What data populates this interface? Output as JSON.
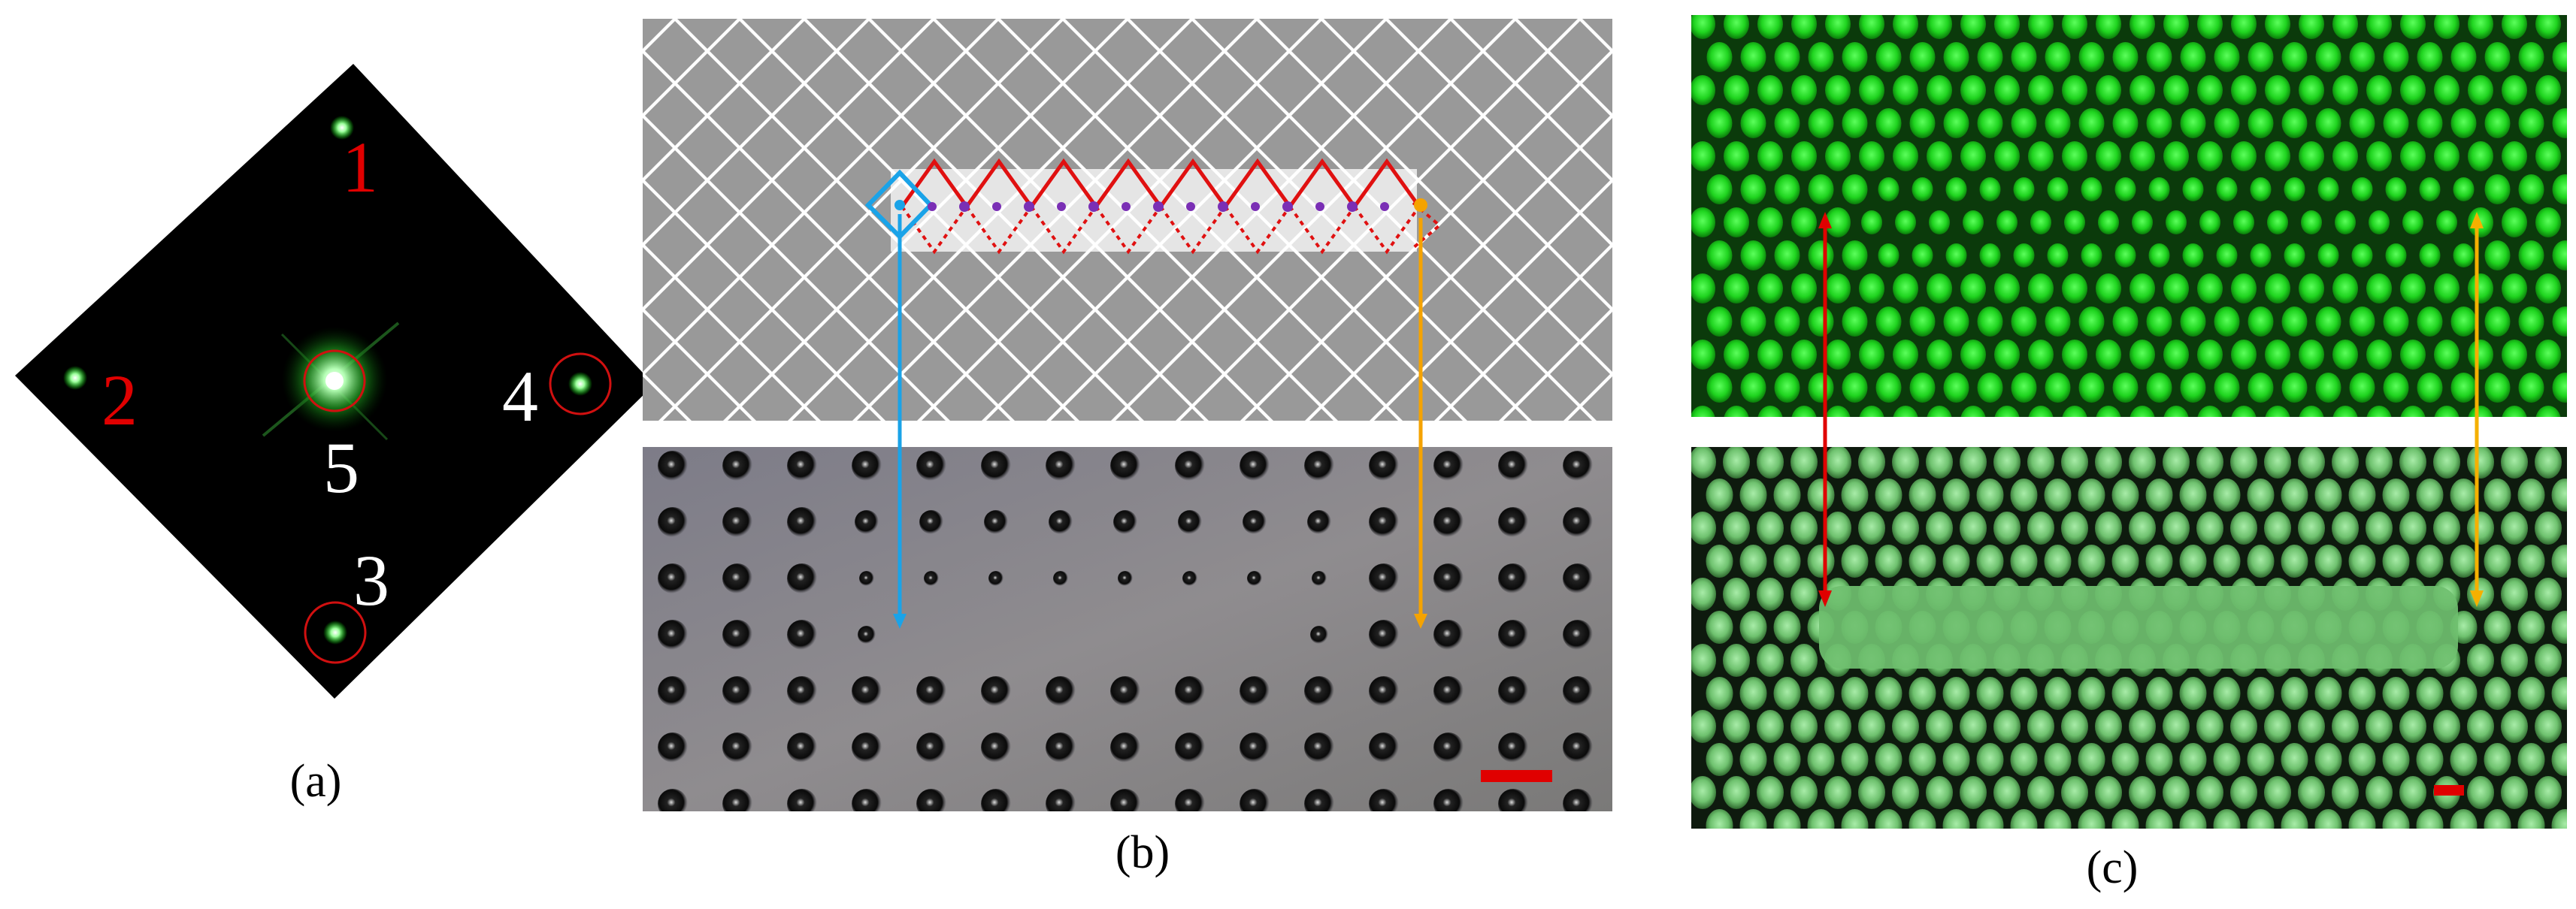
{
  "figure": {
    "panels": [
      {
        "caption": "(a)",
        "spot_labels": [
          {
            "text": "1",
            "color": "#e00000"
          },
          {
            "text": "2",
            "color": "#e00000"
          },
          {
            "text": "3",
            "color": "#ffffff"
          },
          {
            "text": "4",
            "color": "#ffffff"
          },
          {
            "text": "5",
            "color": "#ffffff"
          }
        ],
        "spot_color": "#7dff7d",
        "marker_color": "#d01010"
      },
      {
        "caption": "(b)",
        "cell_color": "#999999",
        "defect_line_color": "#e01010",
        "start_marker_color": "#1aa3e8",
        "end_marker_color": "#f5a300",
        "dot_color": "#7a2fb5",
        "scale_bar_color": "#e00000"
      },
      {
        "caption": "(c)",
        "pattern_color": "#22e022",
        "left_arrow_color": "#e00000",
        "right_arrow_color": "#f5b000",
        "scale_bar_color": "#e00000"
      }
    ]
  }
}
